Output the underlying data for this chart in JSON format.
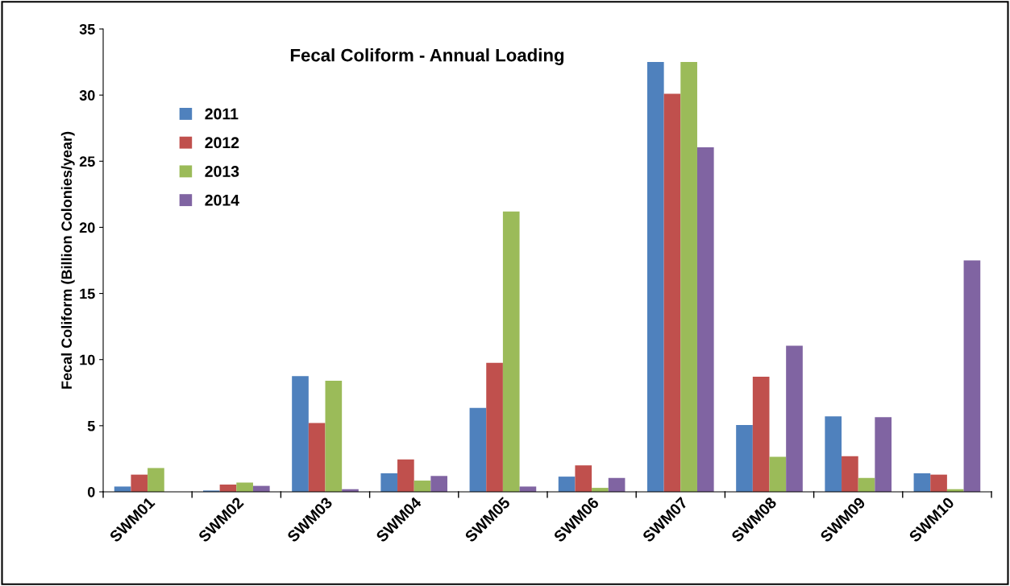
{
  "chart_data": {
    "type": "bar",
    "title": "Fecal Coliform - Annual Loading",
    "ylabel": "Fecal Coliform (Billion Colonies/year)",
    "categories": [
      "SWM01",
      "SWM02",
      "SWM03",
      "SWM04",
      "SWM05",
      "SWM06",
      "SWM07",
      "SWM08",
      "SWM09",
      "SWM10"
    ],
    "series": [
      {
        "name": "2011",
        "color": "#4f81bd",
        "values": [
          0.4,
          0.1,
          8.75,
          1.4,
          6.35,
          1.15,
          32.5,
          5.05,
          5.7,
          1.4
        ]
      },
      {
        "name": "2012",
        "color": "#c0504d",
        "values": [
          1.3,
          0.55,
          5.2,
          2.45,
          9.75,
          2.0,
          30.1,
          8.7,
          2.7,
          1.3
        ]
      },
      {
        "name": "2013",
        "color": "#9bbb59",
        "values": [
          1.8,
          0.7,
          8.4,
          0.85,
          21.2,
          0.3,
          32.5,
          2.65,
          1.05,
          0.2
        ]
      },
      {
        "name": "2014",
        "color": "#8064a2",
        "values": [
          0,
          0.45,
          0.2,
          1.2,
          0.4,
          1.05,
          26.05,
          11.05,
          5.65,
          17.5
        ]
      }
    ],
    "ylim": [
      0,
      35
    ],
    "yticks": [
      0,
      5,
      10,
      15,
      20,
      25,
      30,
      35
    ],
    "grid": false,
    "legend": "top left"
  }
}
